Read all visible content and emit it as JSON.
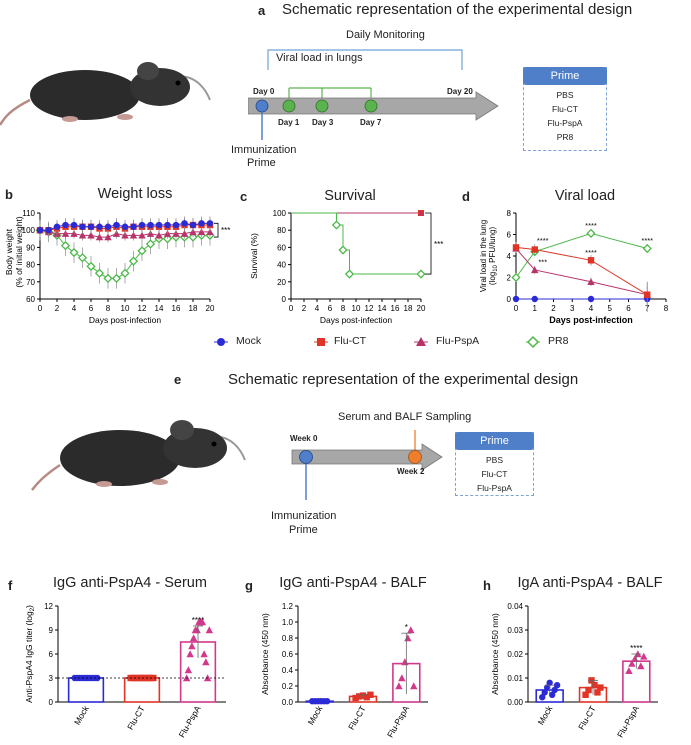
{
  "panels": {
    "a": {
      "label": "a",
      "title": "Schematic representation of the experimental design",
      "daily_monitoring": "Daily Monitoring",
      "viral_load_label": "Viral load in lungs",
      "day0": "Day 0",
      "day1": "Day 1",
      "day3": "Day 3",
      "day7": "Day 7",
      "day20": "Day 20",
      "immunization": "Immunization",
      "prime": "Prime",
      "box_title": "Prime",
      "box_items": [
        "PBS",
        "Flu-CT",
        "Flu-PspA",
        "PR8"
      ]
    },
    "b": {
      "label": "b",
      "title": "Weight loss",
      "sig": "***"
    },
    "c": {
      "label": "c",
      "title": "Survival",
      "sig": "***"
    },
    "d": {
      "label": "d",
      "title": "Viral load",
      "sig": "****",
      "sig2": "***"
    },
    "e": {
      "label": "e",
      "title": "Schematic representation of the experimental design",
      "sampling": "Serum and BALF Sampling",
      "week0": "Week 0",
      "week2": "Week 2",
      "immunization": "Immunization",
      "prime": "Prime",
      "box_title": "Prime",
      "box_items": [
        "PBS",
        "Flu-CT",
        "Flu-PspA"
      ]
    },
    "f": {
      "label": "f",
      "title": "IgG anti-PspA4 - Serum",
      "sig": "****"
    },
    "g": {
      "label": "g",
      "title": "IgG anti-PspA4 - BALF",
      "sig": "*"
    },
    "h": {
      "label": "h",
      "title": "IgA anti-PspA4 - BALF",
      "sig": "****"
    }
  },
  "legend": [
    {
      "name": "Mock",
      "color": "#2b2bd6",
      "marker": "circle"
    },
    {
      "name": "Flu-CT",
      "color": "#e03426",
      "marker": "square"
    },
    {
      "name": "Flu-PspA",
      "color": "#b8336a",
      "marker": "triangle"
    },
    {
      "name": "PR8",
      "color": "#4cb848",
      "marker": "diamond"
    }
  ],
  "chart_data": [
    {
      "id": "b",
      "type": "line",
      "title": "Weight loss",
      "xlabel": "Days post-infection",
      "ylabel": "Body weight (% of initial weight)",
      "xlim": [
        0,
        20
      ],
      "ylim": [
        60,
        110
      ],
      "xticks": [
        "0",
        "2",
        "4",
        "6",
        "8",
        "10",
        "12",
        "14",
        "16",
        "18",
        "20"
      ],
      "yticks": [
        "60",
        "70",
        "80",
        "90",
        "100",
        "110"
      ],
      "x": [
        0,
        1,
        2,
        3,
        4,
        5,
        6,
        7,
        8,
        9,
        10,
        11,
        12,
        13,
        14,
        15,
        16,
        17,
        18,
        19,
        20
      ],
      "series": [
        {
          "name": "Mock",
          "values": [
            100,
            100,
            102,
            103,
            103,
            102,
            102,
            102,
            102,
            103,
            102,
            102,
            103,
            103,
            103,
            103,
            103,
            104,
            103,
            104,
            104
          ]
        },
        {
          "name": "Flu-CT",
          "values": [
            100,
            100,
            101,
            102,
            102,
            102,
            102,
            101,
            101,
            102,
            101,
            102,
            102,
            102,
            102,
            102,
            102,
            103,
            103,
            103,
            103
          ]
        },
        {
          "name": "Flu-PspA",
          "values": [
            100,
            99,
            98,
            98,
            98,
            97,
            97,
            96,
            96,
            98,
            97,
            97,
            97,
            98,
            97,
            98,
            98,
            98,
            99,
            99,
            99
          ]
        },
        {
          "name": "PR8",
          "values": [
            100,
            99,
            97,
            91,
            87,
            84,
            79,
            75,
            72,
            72,
            75,
            82,
            88,
            92,
            95,
            95,
            96,
            96,
            96,
            97,
            97
          ]
        }
      ]
    },
    {
      "id": "c",
      "type": "line",
      "title": "Survival",
      "xlabel": "Days post-infection",
      "ylabel": "Survival (%)",
      "xlim": [
        0,
        20
      ],
      "ylim": [
        0,
        100
      ],
      "xticks": [
        "0",
        "2",
        "4",
        "6",
        "8",
        "10",
        "12",
        "14",
        "16",
        "18",
        "20"
      ],
      "yticks": [
        "0",
        "20",
        "40",
        "60",
        "80",
        "100"
      ],
      "series": [
        {
          "name": "Mock",
          "x": [
            0,
            20
          ],
          "values": [
            100,
            100
          ]
        },
        {
          "name": "Flu-CT",
          "x": [
            0,
            20
          ],
          "values": [
            100,
            100
          ]
        },
        {
          "name": "Flu-PspA",
          "x": [
            0,
            20
          ],
          "values": [
            100,
            100
          ]
        },
        {
          "name": "PR8",
          "x": [
            0,
            7,
            8,
            9,
            20
          ],
          "values": [
            100,
            86,
            57,
            29,
            29
          ]
        }
      ]
    },
    {
      "id": "d",
      "type": "line",
      "title": "Viral load",
      "xlabel": "Days post-infection",
      "ylabel": "Viral load in the lung (log10 PFU/lung)",
      "xlim": [
        0,
        8
      ],
      "ylim": [
        0,
        8
      ],
      "xticks": [
        "0",
        "1",
        "2",
        "3",
        "4",
        "5",
        "6",
        "7",
        "8"
      ],
      "yticks": [
        "0",
        "2",
        "4",
        "6",
        "8"
      ],
      "x": [
        0,
        1,
        4,
        7
      ],
      "series": [
        {
          "name": "Mock",
          "values": [
            0,
            0,
            0,
            0
          ]
        },
        {
          "name": "Flu-CT",
          "values": [
            4.8,
            4.6,
            3.6,
            0.4
          ]
        },
        {
          "name": "Flu-PspA",
          "values": [
            4.7,
            2.7,
            1.6,
            0.4
          ]
        },
        {
          "name": "PR8",
          "values": [
            2.0,
            4.4,
            6.1,
            4.7
          ]
        }
      ]
    },
    {
      "id": "f",
      "type": "bar",
      "title": "IgG anti-PspA4 - Serum",
      "ylabel": "Anti-PspA4 IgG titer (log2)",
      "categories": [
        "Mock",
        "Flu-CT",
        "Flu-PspA"
      ],
      "values": [
        3,
        3,
        7.5
      ],
      "ylim": [
        0,
        12
      ],
      "yticks": [
        "0",
        "3",
        "6",
        "9",
        "12"
      ]
    },
    {
      "id": "g",
      "type": "bar",
      "title": "IgG anti-PspA4 - BALF",
      "ylabel": "Absorbance (450 nm)",
      "categories": [
        "Mock",
        "Flu-CT",
        "Flu-PspA"
      ],
      "values": [
        0.01,
        0.07,
        0.48
      ],
      "ylim": [
        0,
        1.2
      ],
      "yticks": [
        "0.0",
        "0.2",
        "0.4",
        "0.6",
        "0.8",
        "1.0",
        "1.2"
      ]
    },
    {
      "id": "h",
      "type": "bar",
      "title": "IgA anti-PspA4 - BALF",
      "ylabel": "Absorbance (450 nm)",
      "categories": [
        "Mock",
        "Flu-CT",
        "Flu-PspA"
      ],
      "values": [
        0.005,
        0.006,
        0.017
      ],
      "ylim": [
        0,
        0.04
      ],
      "yticks": [
        "0.00",
        "0.01",
        "0.02",
        "0.03",
        "0.04"
      ]
    }
  ]
}
